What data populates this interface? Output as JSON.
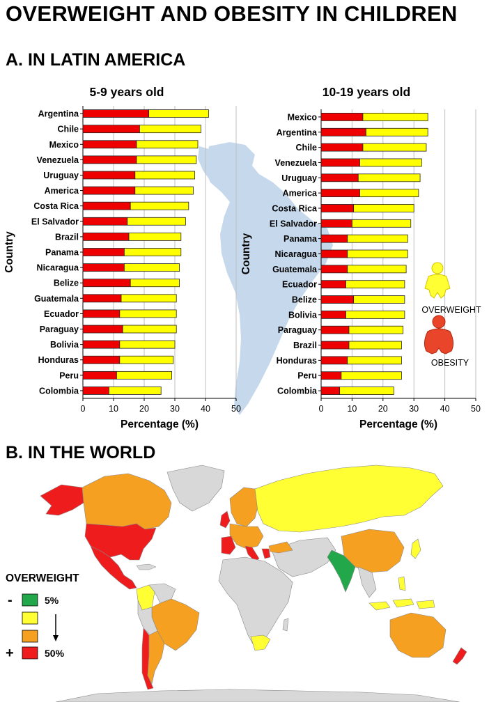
{
  "title": "OVERWEIGHT AND OBESITY IN CHILDREN",
  "section_a_title": "A. IN LATIN AMERICA",
  "section_b_title": "B. IN THE WORLD",
  "colors": {
    "obesity": "#ee0000",
    "overweight": "#ffff00",
    "map_red": "#ee1c1c",
    "map_orange": "#f5a020",
    "map_yellow": "#ffff33",
    "map_green": "#22a84a",
    "map_gray": "#d8d8d8",
    "continent": "#c6d9ec"
  },
  "legend_a": {
    "overweight_label": "OVERWEIGHT",
    "obesity_label": "OBESITY"
  },
  "map_legend": {
    "title": "OVERWEIGHT",
    "minus": "-",
    "plus": "+",
    "low_label": "5%",
    "high_label": "50%",
    "levels": [
      "green",
      "yellow",
      "orange",
      "red"
    ]
  },
  "chart_data": [
    {
      "type": "bar",
      "orientation": "horizontal",
      "stacked": true,
      "title": "5-9 years old",
      "xlabel": "Percentage (%)",
      "ylabel": "Country",
      "xlim": [
        0,
        50
      ],
      "xticks": [
        0,
        10,
        20,
        30,
        40,
        50
      ],
      "grid": true,
      "categories": [
        "Argentina",
        "Chile",
        "Mexico",
        "Venezuela",
        "Uruguay",
        "America",
        "Costa Rica",
        "El Salvador",
        "Brazil",
        "Panama",
        "Nicaragua",
        "Belize",
        "Guatemala",
        "Ecuador",
        "Paraguay",
        "Bolivia",
        "Honduras",
        "Peru",
        "Colombia"
      ],
      "series": [
        {
          "name": "OBESITY",
          "values": [
            21.5,
            18.5,
            17.5,
            17.5,
            17,
            17,
            15.5,
            14.5,
            15,
            13.5,
            13.5,
            15.5,
            12.5,
            12,
            13,
            12,
            12,
            11,
            8.5
          ]
        },
        {
          "name": "OVERWEIGHT",
          "values": [
            19.5,
            20,
            20,
            19.5,
            19.5,
            19,
            19,
            19,
            17,
            18.5,
            18,
            16,
            18,
            18.5,
            17.5,
            18,
            17.5,
            18,
            17
          ]
        }
      ]
    },
    {
      "type": "bar",
      "orientation": "horizontal",
      "stacked": true,
      "title": "10-19 years old",
      "xlabel": "Percentage (%)",
      "ylabel": "Country",
      "xlim": [
        0,
        50
      ],
      "xticks": [
        0,
        10,
        20,
        30,
        40,
        50
      ],
      "grid": true,
      "categories": [
        "Mexico",
        "Argentina",
        "Chile",
        "Venezuela",
        "Uruguay",
        "America",
        "Costa Rica",
        "El Salvador",
        "Panama",
        "Nicaragua",
        "Guatemala",
        "Ecuador",
        "Belize",
        "Bolivia",
        "Paraguay",
        "Brazil",
        "Honduras",
        "Peru",
        "Colombia"
      ],
      "series": [
        {
          "name": "OBESITY",
          "values": [
            13.5,
            14.5,
            13.5,
            12.5,
            12,
            12.5,
            10.5,
            10,
            8.5,
            8.5,
            8.5,
            8,
            10.5,
            8,
            9,
            9,
            8.5,
            6.5,
            6
          ]
        },
        {
          "name": "OVERWEIGHT",
          "values": [
            21,
            20,
            20.5,
            20,
            20,
            19,
            19.5,
            19,
            19.5,
            19.5,
            19,
            19,
            16.5,
            19,
            17.5,
            17,
            17.5,
            19.5,
            17.5
          ]
        }
      ]
    }
  ]
}
